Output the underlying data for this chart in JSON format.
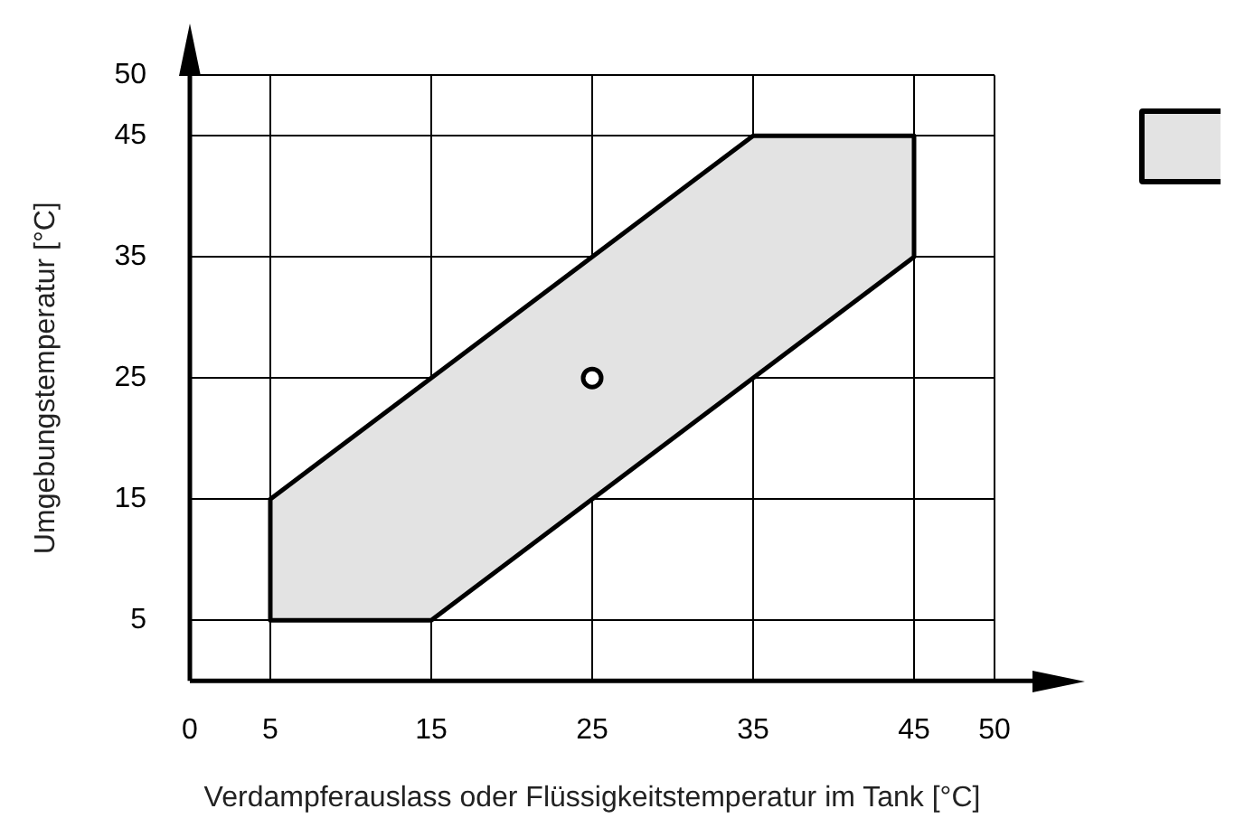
{
  "chart_data": {
    "type": "area",
    "xlabel": "Verdampferauslass oder Flüssigkeitstemperatur im Tank [°C]",
    "ylabel": "Umgebungstemperatur [°C]",
    "xlim": [
      0,
      50
    ],
    "ylim": [
      0,
      50
    ],
    "xticks": [
      0,
      5,
      15,
      25,
      35,
      45,
      50
    ],
    "yticks": [
      5,
      15,
      25,
      35,
      45,
      50
    ],
    "grid": true,
    "series": [
      {
        "type": "area",
        "color": "#e3e3e3",
        "x": [
          5,
          15,
          45,
          45,
          35,
          5,
          5
        ],
        "values": [
          5,
          5,
          35,
          45,
          45,
          15,
          5
        ]
      },
      {
        "type": "scatter",
        "color": "#000000",
        "x": [
          25
        ],
        "values": [
          25
        ],
        "marker": "circle"
      }
    ]
  }
}
